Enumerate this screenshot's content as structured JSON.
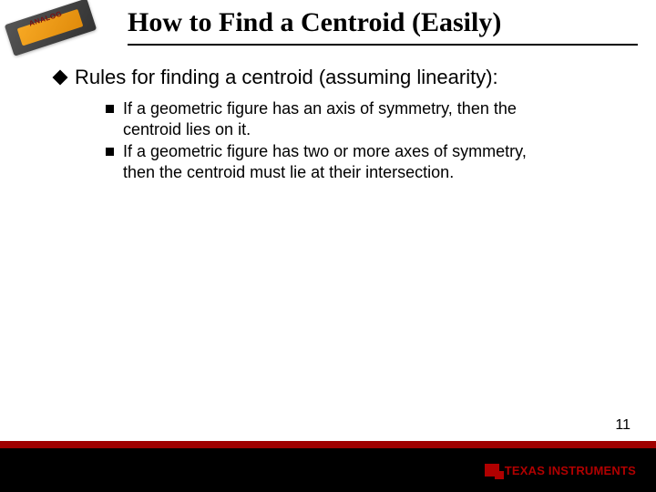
{
  "logo": {
    "brand": "ANALOG"
  },
  "title": "How to Find a Centroid (Easily)",
  "bullets": {
    "level1": "Rules for finding a centroid (assuming linearity):",
    "level2": [
      "If a geometric figure has an axis of symmetry, then the centroid lies on it.",
      "If a geometric figure has two or more axes of symmetry, then the centroid must lie at their intersection."
    ]
  },
  "page_number": "11",
  "footer": {
    "company": "TEXAS INSTRUMENTS"
  },
  "colors": {
    "accent_red": "#a00000",
    "footer_black": "#000000",
    "ti_red": "#b00000",
    "chip_gold": "#f7a823"
  }
}
